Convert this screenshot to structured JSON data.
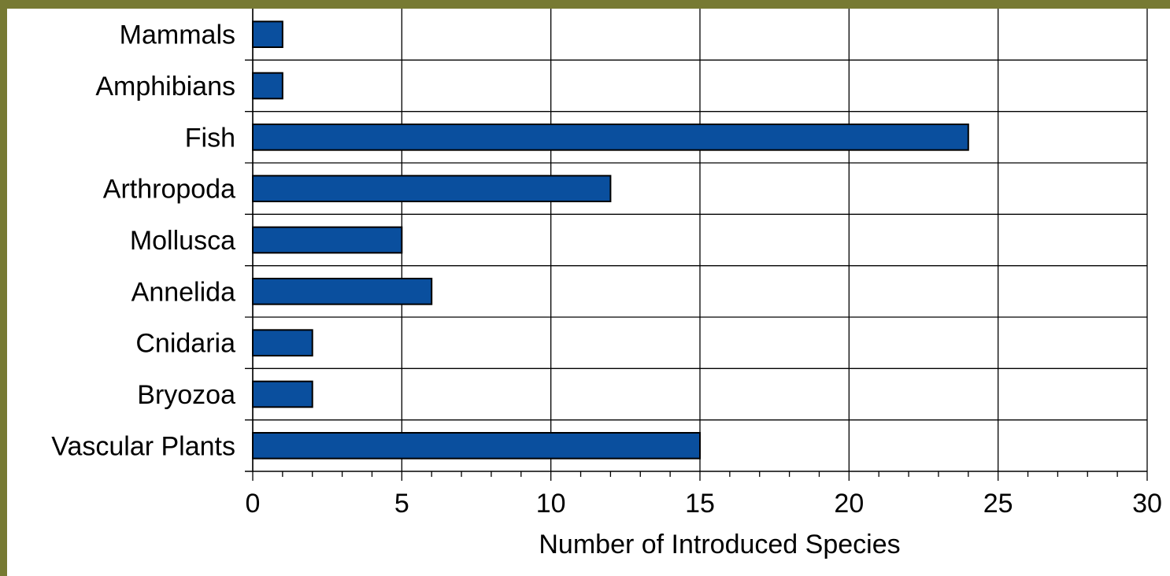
{
  "colors": {
    "background": "#777a33",
    "plot_background": "#ffffff",
    "bar_fill": "#0a4f9e",
    "bar_stroke": "#000000",
    "grid": "#000000"
  },
  "chart_data": {
    "type": "bar",
    "orientation": "horizontal",
    "title": "",
    "xlabel": "Number of Introduced Species",
    "ylabel": "",
    "categories": [
      "Mammals",
      "Amphibians",
      "Fish",
      "Arthropoda",
      "Mollusca",
      "Annelida",
      "Cnidaria",
      "Bryozoa",
      "Vascular Plants"
    ],
    "values": [
      1,
      1,
      24,
      12,
      5,
      6,
      2,
      2,
      15
    ],
    "xlim": [
      0,
      30
    ],
    "xticks": [
      "0",
      "5",
      "10",
      "15",
      "20",
      "25",
      "30"
    ],
    "grid": true,
    "legend": "none"
  }
}
